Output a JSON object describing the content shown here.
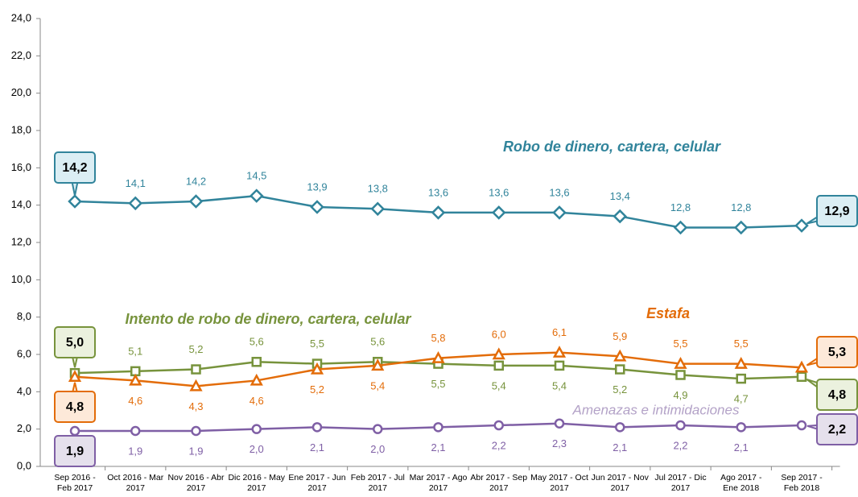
{
  "chart_data": {
    "type": "line",
    "categories": [
      "Sep 2016 - Feb 2017",
      "Oct 2016 - Mar 2017",
      "Nov 2016 - Abr 2017",
      "Dic 2016 - May 2017",
      "Ene 2017 - Jun 2017",
      "Feb 2017 - Jul 2017",
      "Mar 2017 - Ago 2017",
      "Abr 2017 - Sep 2017",
      "May 2017 - Oct 2017",
      "Jun 2017 - Nov 2017",
      "Jul 2017 - Dic 2017",
      "Ago 2017 - Ene 2018",
      "Sep 2017 - Feb 2018"
    ],
    "ylim": [
      0,
      24
    ],
    "yticks": [
      {
        "value": 0,
        "label": "0,0"
      },
      {
        "value": 2,
        "label": "2,0"
      },
      {
        "value": 4,
        "label": "4,0"
      },
      {
        "value": 6,
        "label": "6,0"
      },
      {
        "value": 8,
        "label": "8,0"
      },
      {
        "value": 10,
        "label": "10,0"
      },
      {
        "value": 12,
        "label": "12,0"
      },
      {
        "value": 14,
        "label": "14,0"
      },
      {
        "value": 16,
        "label": "16,0"
      },
      {
        "value": 18,
        "label": "18,0"
      },
      {
        "value": 20,
        "label": "20,0"
      },
      {
        "value": 22,
        "label": "22,0"
      },
      {
        "value": 24,
        "label": "24,0"
      }
    ],
    "grid": false,
    "series": [
      {
        "name": "Robo de dinero, cartera, celular",
        "color": "#31849b",
        "marker": "diamond",
        "values": [
          14.2,
          14.1,
          14.2,
          14.5,
          13.9,
          13.8,
          13.6,
          13.6,
          13.6,
          13.4,
          12.8,
          12.8,
          12.9
        ],
        "value_labels": [
          "14,2",
          "14,1",
          "14,2",
          "14,5",
          "13,9",
          "13,8",
          "13,6",
          "13,6",
          "13,6",
          "13,4",
          "12,8",
          "12,8",
          "12,9"
        ]
      },
      {
        "name": "Intento de robo de dinero, cartera, celular",
        "color": "#77933c",
        "marker": "square",
        "values": [
          5.0,
          5.1,
          5.2,
          5.6,
          5.5,
          5.6,
          5.5,
          5.4,
          5.4,
          5.2,
          4.9,
          4.7,
          4.8
        ],
        "value_labels": [
          "5,0",
          "5,1",
          "5,2",
          "5,6",
          "5,5",
          "5,6",
          "5,5",
          "5,4",
          "5,4",
          "5,2",
          "4,9",
          "4,7",
          "4,8"
        ]
      },
      {
        "name": "Estafa",
        "color": "#e36c09",
        "marker": "triangle",
        "values": [
          4.8,
          4.6,
          4.3,
          4.6,
          5.2,
          5.4,
          5.8,
          6.0,
          6.1,
          5.9,
          5.5,
          5.5,
          5.3
        ],
        "value_labels": [
          "4,8",
          "4,6",
          "4,3",
          "4,6",
          "5,2",
          "5,4",
          "5,8",
          "6,0",
          "6,1",
          "5,9",
          "5,5",
          "5,5",
          "5,3"
        ]
      },
      {
        "name": "Amenazas e intimidaciones",
        "color": "#7f5fa5",
        "marker": "circle",
        "values": [
          1.9,
          1.9,
          1.9,
          2.0,
          2.1,
          2.0,
          2.1,
          2.2,
          2.3,
          2.1,
          2.2,
          2.1,
          2.2
        ],
        "value_labels": [
          "1,9",
          "1,9",
          "1,9",
          "2,0",
          "2,1",
          "2,0",
          "2,1",
          "2,2",
          "2,3",
          "2,1",
          "2,2",
          "2,1",
          "2,2"
        ]
      }
    ]
  }
}
